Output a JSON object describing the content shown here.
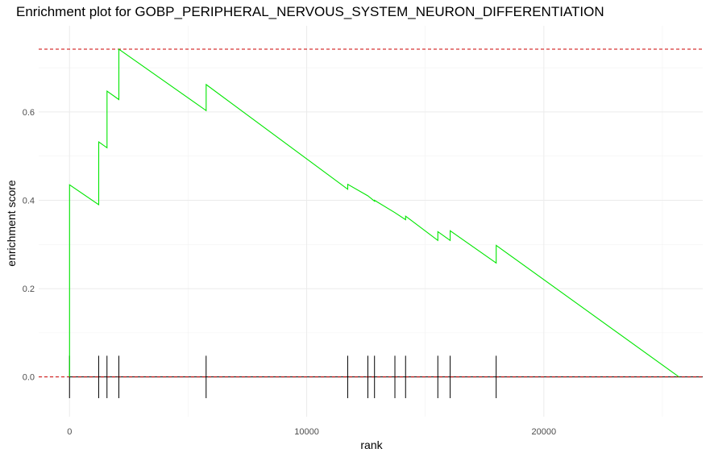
{
  "chart_data": {
    "type": "line",
    "title": "Enrichment plot for GOBP_PERIPHERAL_NERVOUS_SYSTEM_NEURON_DIFFERENTIATION",
    "xlabel": "rank",
    "ylabel": "enrichment score",
    "xlim": [
      -1300,
      26700
    ],
    "ylim": [
      -0.09,
      0.795
    ],
    "x_ticks": [
      0,
      10000,
      20000
    ],
    "x_tick_labels": [
      "0",
      "10000",
      "20000"
    ],
    "y_ticks": [
      0.0,
      0.2,
      0.4,
      0.6
    ],
    "y_tick_labels": [
      "0.0",
      "0.2",
      "0.4",
      "0.6"
    ],
    "grid": true,
    "series": [
      {
        "x": [
          0,
          0,
          1230,
          1230,
          1580,
          1580,
          2080,
          2080,
          5760,
          5760,
          11730,
          11730,
          12580,
          12580,
          12860,
          12860,
          13720,
          13720,
          14170,
          14170,
          15530,
          15530,
          16050,
          16050,
          17990,
          17990,
          25700
        ],
        "y": [
          0.0,
          0.435,
          0.39,
          0.532,
          0.519,
          0.647,
          0.628,
          0.742,
          0.603,
          0.662,
          0.425,
          0.436,
          0.41,
          0.41,
          0.398,
          0.4,
          0.372,
          0.372,
          0.356,
          0.364,
          0.309,
          0.329,
          0.309,
          0.331,
          0.258,
          0.298,
          0.0
        ]
      }
    ],
    "hits": [
      0,
      1230,
      1580,
      2080,
      5760,
      11730,
      12580,
      12860,
      13720,
      14170,
      15530,
      16050,
      17990
    ],
    "max_es_line": 0.742,
    "zero_line": 0.0,
    "line_color": "#00e600",
    "reference_line_color": "#cc0000",
    "hit_color": "#000000"
  }
}
